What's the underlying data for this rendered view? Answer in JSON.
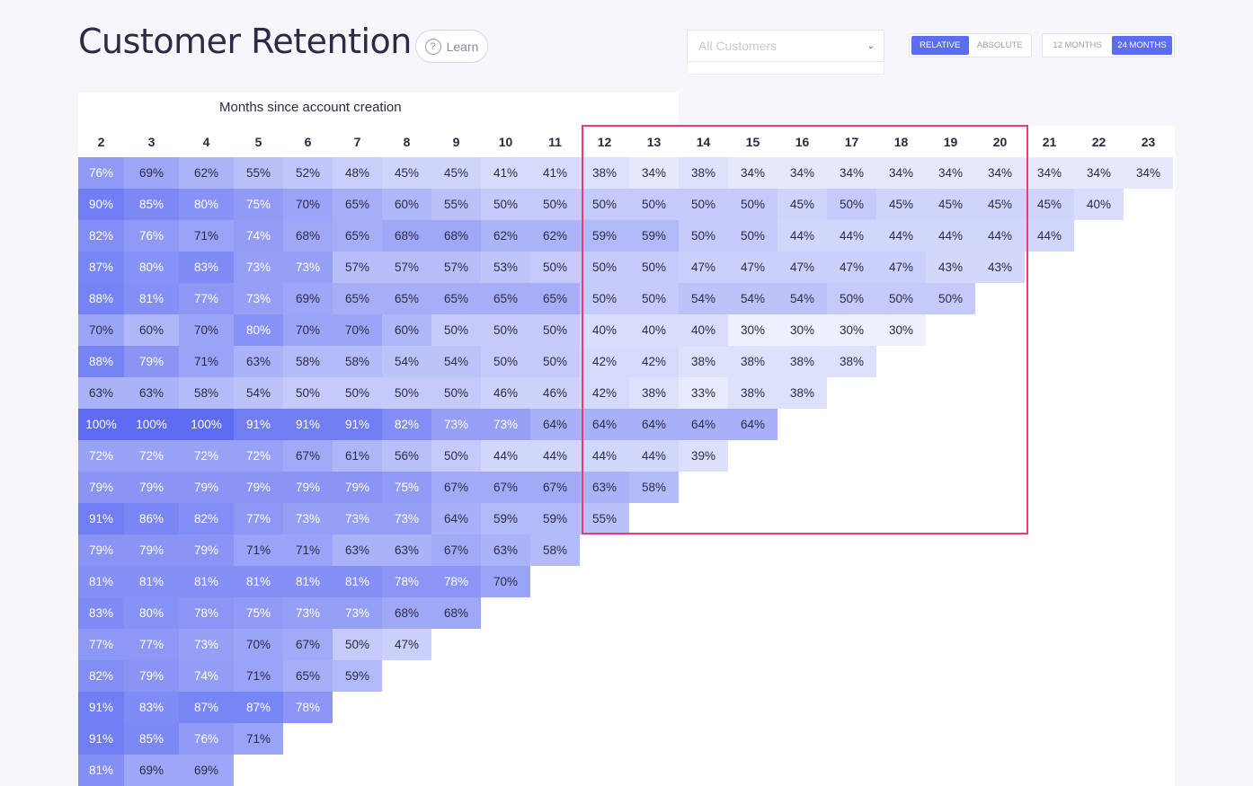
{
  "header": {
    "title": "Customer Retention",
    "learn_label": "Learn",
    "learn_icon": "question-circle-icon",
    "customer_select": {
      "placeholder": "All Customers",
      "icon": "chevron-down-icon"
    },
    "mode_toggle": {
      "options": [
        "RELATIVE",
        "ABSOLUTE"
      ],
      "selected": "RELATIVE"
    },
    "range_toggle": {
      "options": [
        "12 MONTHS",
        "24 MONTHS"
      ],
      "selected": "24 MONTHS"
    }
  },
  "table": {
    "caption": "Months since account creation",
    "columns": [
      "2",
      "3",
      "4",
      "5",
      "6",
      "7",
      "8",
      "9",
      "10",
      "11",
      "12",
      "13",
      "14",
      "15",
      "16",
      "17",
      "18",
      "19",
      "20",
      "21",
      "22",
      "23"
    ],
    "rows": [
      [
        "76%",
        "69%",
        "62%",
        "55%",
        "52%",
        "48%",
        "45%",
        "45%",
        "41%",
        "41%",
        "38%",
        "34%",
        "38%",
        "34%",
        "34%",
        "34%",
        "34%",
        "34%",
        "34%",
        "34%",
        "34%",
        "34%"
      ],
      [
        "90%",
        "85%",
        "80%",
        "75%",
        "70%",
        "65%",
        "60%",
        "55%",
        "50%",
        "50%",
        "50%",
        "50%",
        "50%",
        "50%",
        "45%",
        "50%",
        "45%",
        "45%",
        "45%",
        "45%",
        "40%"
      ],
      [
        "82%",
        "76%",
        "71%",
        "74%",
        "68%",
        "65%",
        "68%",
        "68%",
        "62%",
        "62%",
        "59%",
        "59%",
        "50%",
        "50%",
        "44%",
        "44%",
        "44%",
        "44%",
        "44%",
        "44%"
      ],
      [
        "87%",
        "80%",
        "83%",
        "73%",
        "73%",
        "57%",
        "57%",
        "57%",
        "53%",
        "50%",
        "50%",
        "50%",
        "47%",
        "47%",
        "47%",
        "47%",
        "47%",
        "43%",
        "43%"
      ],
      [
        "88%",
        "81%",
        "77%",
        "73%",
        "69%",
        "65%",
        "65%",
        "65%",
        "65%",
        "65%",
        "50%",
        "50%",
        "54%",
        "54%",
        "54%",
        "50%",
        "50%",
        "50%"
      ],
      [
        "70%",
        "60%",
        "70%",
        "80%",
        "70%",
        "70%",
        "60%",
        "50%",
        "50%",
        "50%",
        "40%",
        "40%",
        "40%",
        "30%",
        "30%",
        "30%",
        "30%"
      ],
      [
        "88%",
        "79%",
        "71%",
        "63%",
        "58%",
        "58%",
        "54%",
        "54%",
        "50%",
        "50%",
        "42%",
        "42%",
        "38%",
        "38%",
        "38%",
        "38%"
      ],
      [
        "63%",
        "63%",
        "58%",
        "54%",
        "50%",
        "50%",
        "50%",
        "50%",
        "46%",
        "46%",
        "42%",
        "38%",
        "33%",
        "38%",
        "38%"
      ],
      [
        "100%",
        "100%",
        "100%",
        "91%",
        "91%",
        "91%",
        "82%",
        "73%",
        "73%",
        "64%",
        "64%",
        "64%",
        "64%",
        "64%"
      ],
      [
        "72%",
        "72%",
        "72%",
        "72%",
        "67%",
        "61%",
        "56%",
        "50%",
        "44%",
        "44%",
        "44%",
        "44%",
        "39%"
      ],
      [
        "79%",
        "79%",
        "79%",
        "79%",
        "79%",
        "79%",
        "75%",
        "67%",
        "67%",
        "67%",
        "63%",
        "58%"
      ],
      [
        "91%",
        "86%",
        "82%",
        "77%",
        "73%",
        "73%",
        "73%",
        "64%",
        "59%",
        "59%",
        "55%"
      ],
      [
        "79%",
        "79%",
        "79%",
        "71%",
        "71%",
        "63%",
        "63%",
        "67%",
        "63%",
        "58%"
      ],
      [
        "81%",
        "81%",
        "81%",
        "81%",
        "81%",
        "81%",
        "78%",
        "78%",
        "70%"
      ],
      [
        "83%",
        "80%",
        "78%",
        "75%",
        "73%",
        "73%",
        "68%",
        "68%"
      ],
      [
        "77%",
        "77%",
        "73%",
        "70%",
        "67%",
        "50%",
        "47%"
      ],
      [
        "82%",
        "79%",
        "74%",
        "71%",
        "65%",
        "59%"
      ],
      [
        "91%",
        "83%",
        "87%",
        "87%",
        "78%"
      ],
      [
        "91%",
        "85%",
        "76%",
        "71%"
      ],
      [
        "81%",
        "69%",
        "69%"
      ]
    ]
  },
  "colors": {
    "accent": "#5b6df0",
    "highlight_border": "#ee3a72",
    "cell_low": "#eef0fd",
    "cell_high": "#5d6cf2"
  }
}
